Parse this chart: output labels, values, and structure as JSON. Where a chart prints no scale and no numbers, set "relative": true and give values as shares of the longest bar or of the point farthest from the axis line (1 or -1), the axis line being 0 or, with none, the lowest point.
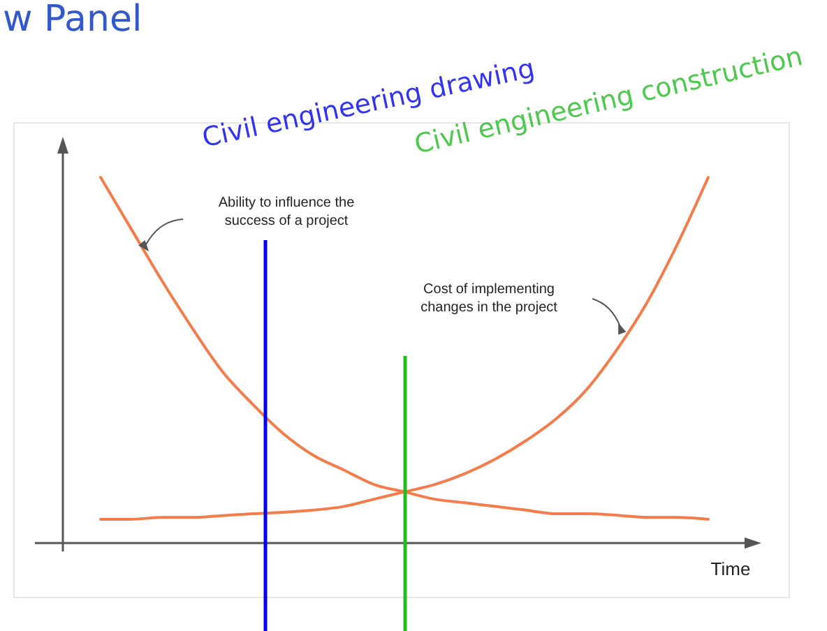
{
  "chart_data": {
    "type": "line",
    "relative": true,
    "title": "w Panel",
    "xlabel": "Time",
    "marker": "none",
    "line_style": "solid",
    "categories": [
      null,
      null,
      null,
      null,
      null,
      null,
      null,
      null,
      null,
      null,
      null,
      null,
      null,
      null,
      null,
      null,
      null,
      null,
      null,
      null,
      null
    ],
    "series": [
      {
        "color": "#f47b4a",
        "values": [
          1.0,
          0.86,
          0.72,
          0.59,
          0.47,
          0.38,
          0.3,
          0.24,
          0.2,
          0.16,
          0.14,
          0.12,
          0.11,
          0.1,
          0.09,
          0.08,
          0.08,
          0.076,
          0.07,
          0.07,
          0.065
        ]
      },
      {
        "color": "#f47b4a",
        "values": [
          0.065,
          0.065,
          0.07,
          0.07,
          0.075,
          0.08,
          0.084,
          0.09,
          0.1,
          0.12,
          0.14,
          0.16,
          0.19,
          0.23,
          0.28,
          0.34,
          0.42,
          0.53,
          0.66,
          0.82,
          1.0
        ]
      }
    ],
    "annotations": [
      "Ability to influence the\nsuccess of a project",
      "Cost of implementing\nchanges in the project",
      "Civil engineering drawing",
      "Civil engineering construction"
    ]
  }
}
